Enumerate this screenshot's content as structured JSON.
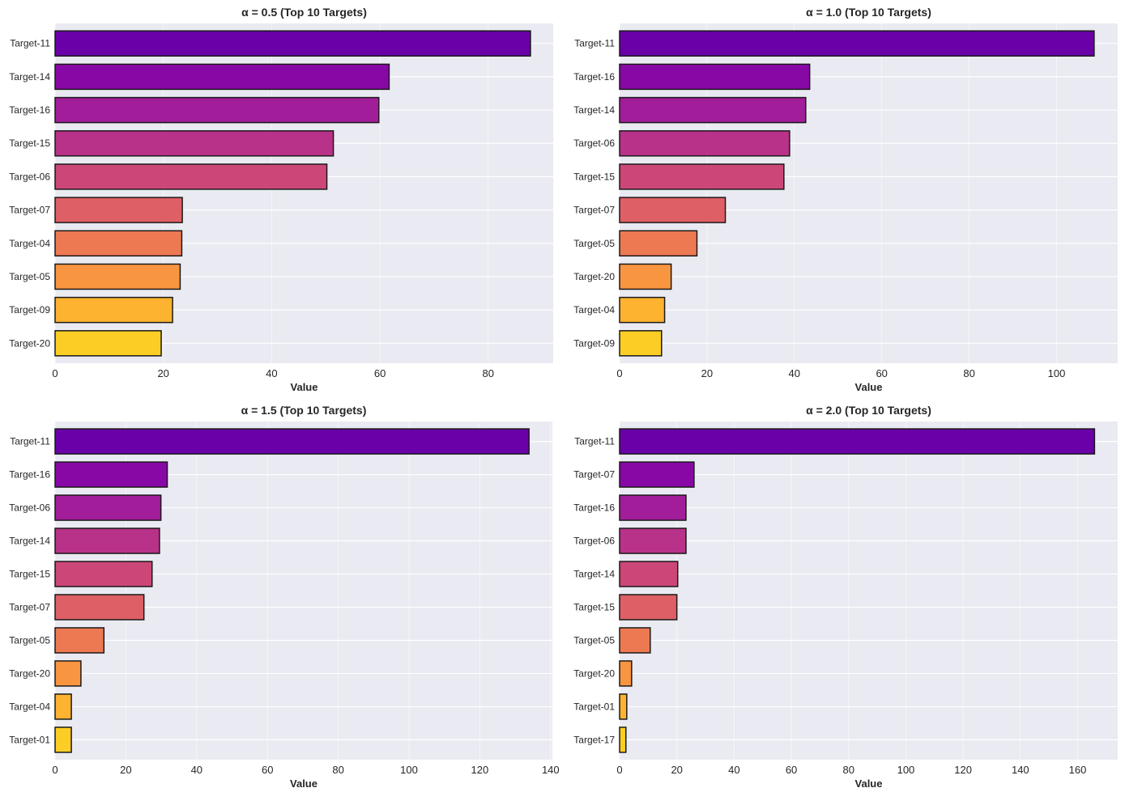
{
  "chart_data": [
    {
      "type": "bar",
      "orientation": "horizontal",
      "title": "α = 0.5 (Top 10 Targets)",
      "xlabel": "Value",
      "ylabel": "",
      "xlim": [
        0,
        92
      ],
      "xticks": [
        0,
        20,
        40,
        60,
        80
      ],
      "grid": true,
      "categories": [
        "Target-11",
        "Target-14",
        "Target-16",
        "Target-15",
        "Target-06",
        "Target-07",
        "Target-04",
        "Target-05",
        "Target-09",
        "Target-20"
      ],
      "values": [
        87.8,
        61.7,
        59.8,
        51.4,
        50.2,
        23.5,
        23.4,
        23.1,
        21.7,
        19.6
      ]
    },
    {
      "type": "bar",
      "orientation": "horizontal",
      "title": "α = 1.0 (Top 10 Targets)",
      "xlabel": "Value",
      "ylabel": "",
      "xlim": [
        0,
        114
      ],
      "xticks": [
        0,
        20,
        40,
        60,
        80,
        100
      ],
      "grid": true,
      "categories": [
        "Target-11",
        "Target-16",
        "Target-14",
        "Target-06",
        "Target-15",
        "Target-07",
        "Target-05",
        "Target-20",
        "Target-04",
        "Target-09"
      ],
      "values": [
        108.6,
        43.5,
        42.6,
        38.9,
        37.6,
        24.2,
        17.7,
        11.8,
        10.3,
        9.6
      ]
    },
    {
      "type": "bar",
      "orientation": "horizontal",
      "title": "α = 1.5 (Top 10 Targets)",
      "xlabel": "Value",
      "ylabel": "",
      "xlim": [
        0,
        140.5
      ],
      "xticks": [
        0,
        20,
        40,
        60,
        80,
        100,
        120,
        140
      ],
      "grid": true,
      "categories": [
        "Target-11",
        "Target-16",
        "Target-06",
        "Target-14",
        "Target-15",
        "Target-07",
        "Target-05",
        "Target-20",
        "Target-04",
        "Target-01"
      ],
      "values": [
        133.9,
        31.7,
        29.9,
        29.5,
        27.4,
        25.1,
        13.8,
        7.3,
        4.6,
        4.6
      ]
    },
    {
      "type": "bar",
      "orientation": "horizontal",
      "title": "α = 2.0 (Top 10 Targets)",
      "xlabel": "Value",
      "ylabel": "",
      "xlim": [
        0,
        174
      ],
      "xticks": [
        0,
        20,
        40,
        60,
        80,
        100,
        120,
        140,
        160
      ],
      "grid": true,
      "categories": [
        "Target-11",
        "Target-07",
        "Target-16",
        "Target-06",
        "Target-14",
        "Target-15",
        "Target-05",
        "Target-20",
        "Target-01",
        "Target-17"
      ],
      "values": [
        165.9,
        26.0,
        23.2,
        23.2,
        20.3,
        20.0,
        10.7,
        4.2,
        2.5,
        2.2
      ]
    }
  ],
  "style": {
    "plot_background": "#eaeaf2",
    "grid_color": "#ffffff",
    "bar_edge": "#1a1a1a",
    "bar_colors": [
      "#6a00a8",
      "#8808a6",
      "#a21d9a",
      "#b83289",
      "#cc4778",
      "#de5f65",
      "#ed7953",
      "#f89540",
      "#fdb32f",
      "#fcce25"
    ]
  }
}
